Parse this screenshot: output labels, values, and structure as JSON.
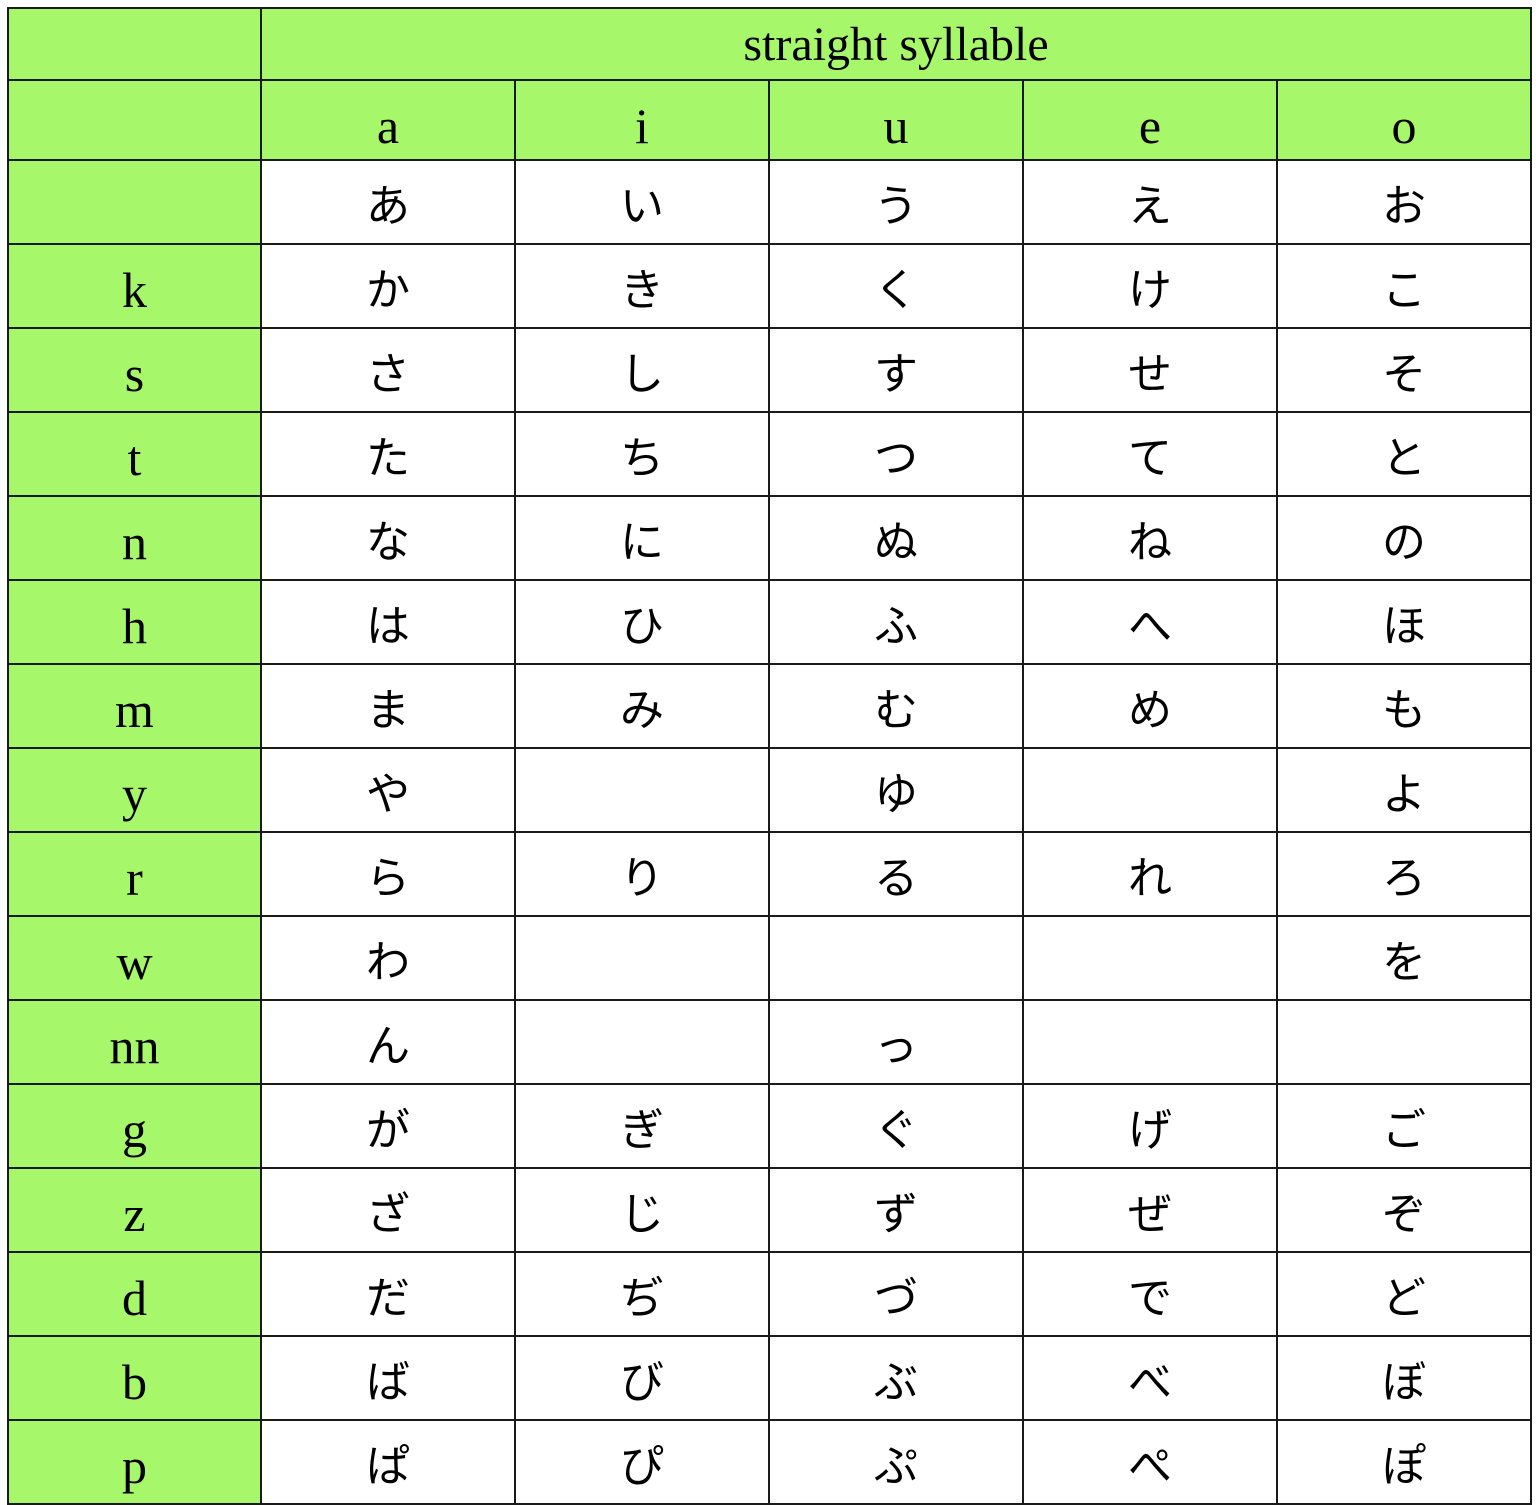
{
  "header": {
    "title": "straight syllable",
    "vowels": [
      "a",
      "i",
      "u",
      "e",
      "o"
    ]
  },
  "colors": {
    "header_bg": "#a6f76a",
    "cell_bg": "#ffffff",
    "border": "#1a1a1a"
  },
  "rows": [
    {
      "consonant": "",
      "kana": [
        "あ",
        "い",
        "う",
        "え",
        "お"
      ]
    },
    {
      "consonant": "k",
      "kana": [
        "か",
        "き",
        "く",
        "け",
        "こ"
      ]
    },
    {
      "consonant": "s",
      "kana": [
        "さ",
        "し",
        "す",
        "せ",
        "そ"
      ]
    },
    {
      "consonant": "t",
      "kana": [
        "た",
        "ち",
        "つ",
        "て",
        "と"
      ]
    },
    {
      "consonant": "n",
      "kana": [
        "な",
        "に",
        "ぬ",
        "ね",
        "の"
      ]
    },
    {
      "consonant": "h",
      "kana": [
        "は",
        "ひ",
        "ふ",
        "へ",
        "ほ"
      ]
    },
    {
      "consonant": "m",
      "kana": [
        "ま",
        "み",
        "む",
        "め",
        "も"
      ]
    },
    {
      "consonant": "y",
      "kana": [
        "や",
        "",
        "ゆ",
        "",
        "よ"
      ]
    },
    {
      "consonant": "r",
      "kana": [
        "ら",
        "り",
        "る",
        "れ",
        "ろ"
      ]
    },
    {
      "consonant": "w",
      "kana": [
        "わ",
        "",
        "",
        "",
        "を"
      ]
    },
    {
      "consonant": "nn",
      "kana": [
        "ん",
        "",
        "っ",
        "",
        ""
      ]
    },
    {
      "consonant": "g",
      "kana": [
        "が",
        "ぎ",
        "ぐ",
        "げ",
        "ご"
      ]
    },
    {
      "consonant": "z",
      "kana": [
        "ざ",
        "じ",
        "ず",
        "ぜ",
        "ぞ"
      ]
    },
    {
      "consonant": "d",
      "kana": [
        "だ",
        "ぢ",
        "づ",
        "で",
        "ど"
      ]
    },
    {
      "consonant": "b",
      "kana": [
        "ば",
        "び",
        "ぶ",
        "べ",
        "ぼ"
      ]
    },
    {
      "consonant": "p",
      "kana": [
        "ぱ",
        "ぴ",
        "ぷ",
        "ぺ",
        "ぽ"
      ]
    }
  ]
}
